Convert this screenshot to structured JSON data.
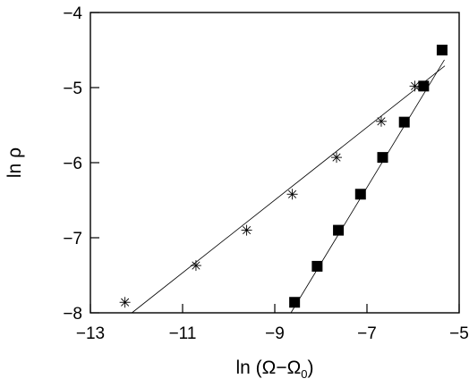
{
  "chart_data": {
    "type": "scatter",
    "xlabel": "ln (Ω−Ω",
    "xlabel_subscript": "0",
    "xlabel_suffix": ")",
    "ylabel": "ln ρ",
    "xlim": [
      -13,
      -5
    ],
    "ylim": [
      -8,
      -4
    ],
    "xticks": [
      -13,
      -11,
      -9,
      -7,
      -5
    ],
    "yticks": [
      -8,
      -7,
      -6,
      -5,
      -4
    ],
    "xtick_labels": [
      "−13",
      "−11",
      "−9",
      "−7",
      "−5"
    ],
    "ytick_labels": [
      "−8",
      "−7",
      "−6",
      "−5",
      "−4"
    ],
    "grid": false,
    "series": [
      {
        "marker": "asterisk",
        "points": [
          {
            "x": -12.25,
            "y": -7.86
          },
          {
            "x": -10.71,
            "y": -7.37
          },
          {
            "x": -9.61,
            "y": -6.9
          },
          {
            "x": -8.62,
            "y": -6.42
          },
          {
            "x": -7.66,
            "y": -5.93
          },
          {
            "x": -6.69,
            "y": -5.45
          },
          {
            "x": -5.96,
            "y": -4.98
          }
        ],
        "fit_line": [
          {
            "x": -12.1,
            "y": -8.0
          },
          {
            "x": -5.31,
            "y": -4.71
          }
        ]
      },
      {
        "marker": "filled-square",
        "points": [
          {
            "x": -8.57,
            "y": -7.86
          },
          {
            "x": -8.08,
            "y": -7.38
          },
          {
            "x": -7.62,
            "y": -6.9
          },
          {
            "x": -7.14,
            "y": -6.42
          },
          {
            "x": -6.66,
            "y": -5.93
          },
          {
            "x": -6.19,
            "y": -5.46
          },
          {
            "x": -5.77,
            "y": -4.98
          },
          {
            "x": -5.37,
            "y": -4.5
          }
        ],
        "fit_line": [
          {
            "x": -8.65,
            "y": -8.0
          },
          {
            "x": -5.32,
            "y": -4.63
          }
        ]
      }
    ]
  }
}
